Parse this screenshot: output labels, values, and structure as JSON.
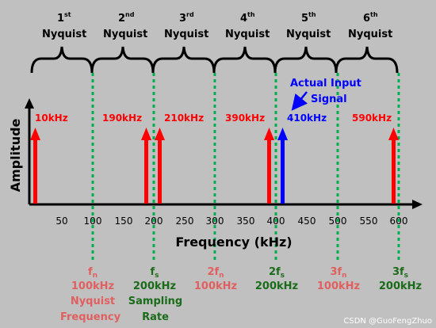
{
  "zones": [
    {
      "num": "1",
      "sup": "st",
      "word": "Nyquist"
    },
    {
      "num": "2",
      "sup": "nd",
      "word": "Nyquist"
    },
    {
      "num": "3",
      "sup": "rd",
      "word": "Nyquist"
    },
    {
      "num": "4",
      "sup": "th",
      "word": "Nyquist"
    },
    {
      "num": "5",
      "sup": "th",
      "word": "Nyquist"
    },
    {
      "num": "6",
      "sup": "th",
      "word": "Nyquist"
    }
  ],
  "axis": {
    "x_title": "Frequency (kHz)",
    "y_title": "Amplitude",
    "ticks": [
      "50",
      "100",
      "150",
      "200",
      "250",
      "300",
      "350",
      "400",
      "450",
      "500",
      "550",
      "600"
    ]
  },
  "signals": [
    {
      "label": "10kHz",
      "color": "#ff0000"
    },
    {
      "label": "190kHz",
      "color": "#ff0000"
    },
    {
      "label": "210kHz",
      "color": "#ff0000"
    },
    {
      "label": "390kHz",
      "color": "#ff0000"
    },
    {
      "label": "410kHz",
      "color": "#0000ff"
    },
    {
      "label": "590kHz",
      "color": "#ff0000"
    }
  ],
  "callout": {
    "line1": "Actual Input",
    "line2": "Signal",
    "color": "#0000ff"
  },
  "markers": [
    {
      "sym": "f",
      "sub": "n",
      "value": "100kHz",
      "desc1": "Nyquist",
      "desc2": "Frequency",
      "color": "#e06060"
    },
    {
      "sym": "f",
      "sub": "s",
      "value": "200kHz",
      "desc1": "Sampling",
      "desc2": "Rate",
      "color": "#1a6b1a"
    },
    {
      "sym": "2f",
      "sub": "n",
      "value": "100kHz",
      "desc1": "",
      "desc2": "",
      "color": "#e06060"
    },
    {
      "sym": "2f",
      "sub": "s",
      "value": "200kHz",
      "desc1": "",
      "desc2": "",
      "color": "#1a6b1a"
    },
    {
      "sym": "3f",
      "sub": "n",
      "value": "100kHz",
      "desc1": "",
      "desc2": "",
      "color": "#e06060"
    },
    {
      "sym": "3f",
      "sub": "s",
      "value": "200kHz",
      "desc1": "",
      "desc2": "",
      "color": "#1a6b1a"
    }
  ],
  "watermark": "CSDN @GuoFengZhuo"
}
